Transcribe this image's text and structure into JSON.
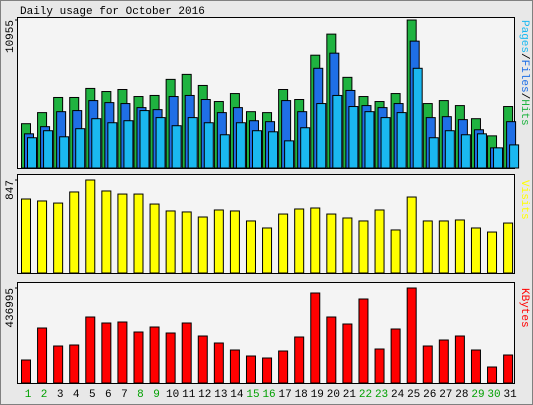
{
  "chart_data": [
    {
      "type": "bar",
      "title": "Daily usage for October 2016",
      "ylim": [
        0,
        10955
      ],
      "yticks": [
        10955
      ],
      "legend_separator": "/",
      "series": [
        {
          "name": "Hits",
          "color": "#1fb340",
          "values": [
            3280,
            4100,
            5220,
            5220,
            5890,
            5660,
            5810,
            5290,
            5370,
            6560,
            6930,
            6110,
            4920,
            5510,
            4170,
            4100,
            5810,
            5070,
            8350,
            9910,
            6710,
            5290,
            4920,
            5510,
            10955,
            4770,
            4990,
            4620,
            3650,
            2380,
            4550
          ]
        },
        {
          "name": "Files",
          "color": "#1f6fe6",
          "values": [
            2530,
            3060,
            4170,
            4250,
            4990,
            4840,
            4770,
            4470,
            4320,
            5290,
            5370,
            5070,
            4100,
            4470,
            3500,
            3430,
            4990,
            4170,
            7380,
            8500,
            5740,
            4620,
            4470,
            4770,
            9390,
            3730,
            3800,
            3580,
            2830,
            1490,
            3430
          ]
        },
        {
          "name": "Pages",
          "color": "#1ab8f0",
          "values": [
            2240,
            2760,
            2310,
            2910,
            3650,
            3350,
            3500,
            4250,
            3730,
            3130,
            3730,
            3350,
            2460,
            3350,
            2760,
            2680,
            2010,
            2980,
            4770,
            5370,
            4550,
            4170,
            3730,
            4100,
            7380,
            2240,
            2760,
            2460,
            2530,
            1490,
            1710
          ]
        }
      ]
    },
    {
      "type": "bar",
      "ylim": [
        0,
        847
      ],
      "yticks": [
        847
      ],
      "series": [
        {
          "name": "Visits",
          "color": "#ffff00",
          "values": [
            674,
            656,
            637,
            738,
            847,
            747,
            719,
            719,
            628,
            565,
            556,
            510,
            574,
            565,
            474,
            410,
            537,
            583,
            592,
            537,
            501,
            474,
            574,
            392,
            692,
            474,
            474,
            483,
            410,
            373,
            455
          ]
        }
      ]
    },
    {
      "type": "bar",
      "ylim": [
        0,
        436995
      ],
      "yticks": [
        436995
      ],
      "categories": [
        "1",
        "2",
        "3",
        "4",
        "5",
        "6",
        "7",
        "8",
        "9",
        "10",
        "11",
        "12",
        "13",
        "14",
        "15",
        "16",
        "17",
        "18",
        "19",
        "20",
        "21",
        "22",
        "23",
        "24",
        "25",
        "26",
        "27",
        "28",
        "29",
        "30",
        "31"
      ],
      "category_colors": [
        "#00a000",
        "#00a000",
        "#000000",
        "#000000",
        "#000000",
        "#000000",
        "#000000",
        "#00a000",
        "#00a000",
        "#000000",
        "#000000",
        "#000000",
        "#000000",
        "#000000",
        "#00a000",
        "#00a000",
        "#000000",
        "#000000",
        "#000000",
        "#000000",
        "#000000",
        "#00a000",
        "#00a000",
        "#000000",
        "#000000",
        "#000000",
        "#000000",
        "#000000",
        "#00a000",
        "#00a000",
        "#000000"
      ],
      "series": [
        {
          "name": "KBytes",
          "color": "#ff0000",
          "values": [
            105800,
            253000,
            170200,
            174800,
            303600,
            276000,
            280600,
            234600,
            257600,
            230000,
            276000,
            216200,
            184000,
            151800,
            124200,
            115000,
            147200,
            211600,
            414000,
            303600,
            271400,
            386400,
            156400,
            248400,
            436995,
            170200,
            197800,
            216200,
            151800,
            73600,
            128800
          ]
        }
      ]
    }
  ]
}
